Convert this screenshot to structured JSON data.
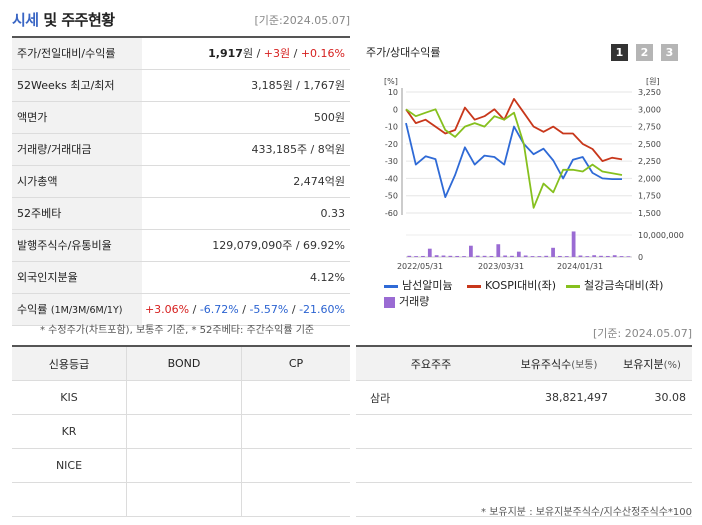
{
  "header": {
    "title_main": "시세",
    "title_rest": " 및 주주현황",
    "date": "[기준:2024.05.07]"
  },
  "info": {
    "rows": [
      {
        "label": "주가/전일대비/수익률"
      },
      {
        "label": "52Weeks 최고/최저",
        "value": "3,185원 / 1,767원"
      },
      {
        "label": "액면가",
        "value": "500원"
      },
      {
        "label": "거래량/거래대금",
        "value": "433,185주 / 8억원"
      },
      {
        "label": "시가총액",
        "value": "2,474억원"
      },
      {
        "label": "52주베타",
        "value": "0.33"
      },
      {
        "label": "발행주식수/유통비율",
        "value": "129,079,090주 / 69.92%"
      },
      {
        "label": "외국인지분율",
        "value": "4.12%"
      },
      {
        "label": "수익률",
        "label_sub": "(1M/3M/6M/1Y)"
      }
    ],
    "price": "1,917",
    "price_unit": "원",
    "sep": " / ",
    "change": "+3원",
    "change_pct": "+0.16%",
    "returns": [
      "+3.06%",
      "-6.72%",
      "-5.57%",
      "-21.60%"
    ]
  },
  "note1": "* 수정주가(차트포함), 보통주 기준, * 52주베타: 주간수익률 기준",
  "chart": {
    "title": "주가/상대수익률",
    "pages": [
      "1",
      "2",
      "3"
    ],
    "legend": {
      "stock": "남선알미늄",
      "kospi": "KOSPI대비(좌)",
      "sector": "철강금속대비(좌)",
      "volume": "거래량"
    },
    "colors": {
      "stock": "#2f6ad6",
      "kospi": "#c8371b",
      "sector": "#86c01e",
      "volume": "#9a6bd3"
    }
  },
  "chart_data": {
    "type": "line",
    "x_ticks": [
      "2022/05/31",
      "2023/03/31",
      "2024/01/31"
    ],
    "left_axis": {
      "unit": "[%]",
      "ticks": [
        10,
        0,
        -10,
        -20,
        -30,
        -40,
        -50,
        -60
      ],
      "range": [
        -60,
        10
      ]
    },
    "right_axis": {
      "unit": "[원]",
      "ticks": [
        "3,250",
        "3,000",
        "2,750",
        "2,500",
        "2,250",
        "2,000",
        "1,750",
        "1,500"
      ],
      "range": [
        1500,
        3250
      ]
    },
    "volume_axis": {
      "ticks": [
        "10,000,000",
        "0"
      ],
      "range": [
        0,
        10000000
      ]
    },
    "series": [
      {
        "name": "남선알미늄",
        "axis": "right",
        "values": [
          2800,
          2200,
          2320,
          2280,
          1730,
          2050,
          2450,
          2200,
          2330,
          2310,
          2200,
          2750,
          2500,
          2350,
          2430,
          2260,
          2000,
          2270,
          2310,
          2080,
          2000,
          1990,
          1990
        ]
      },
      {
        "name": "KOSPI대비(좌)",
        "axis": "left",
        "values": [
          0,
          -8,
          -6,
          -10,
          -14,
          -12,
          1,
          -6,
          -4,
          0,
          -6,
          6,
          -2,
          -10,
          -13,
          -10,
          -14,
          -14,
          -20,
          -23,
          -30,
          -28,
          -29
        ]
      },
      {
        "name": "철강금속대비(좌)",
        "axis": "left",
        "values": [
          0,
          -4,
          -2,
          0,
          -12,
          -16,
          -10,
          -8,
          -10,
          -4,
          -6,
          -2,
          -20,
          -57,
          -43,
          -48,
          -35,
          -35,
          -36,
          -32,
          -36,
          -37,
          -38
        ]
      },
      {
        "name": "거래량",
        "axis": "volume",
        "values": [
          400000,
          300000,
          350000,
          2800000,
          600000,
          500000,
          400000,
          350000,
          300000,
          3800000,
          450000,
          400000,
          350000,
          4300000,
          500000,
          400000,
          1800000,
          500000,
          300000,
          300000,
          400000,
          3100000,
          350000,
          300000,
          8600000,
          500000,
          300000,
          600000,
          400000,
          350000,
          600000,
          300000,
          250000
        ]
      }
    ]
  },
  "date2": "[기준: 2024.05.07]",
  "credit": {
    "headers": [
      "신용등급",
      "BOND",
      "CP"
    ],
    "rows": [
      {
        "agency": "KIS",
        "bond": "",
        "cp": ""
      },
      {
        "agency": "KR",
        "bond": "",
        "cp": ""
      },
      {
        "agency": "NICE",
        "bond": "",
        "cp": ""
      },
      {
        "agency": "",
        "bond": "",
        "cp": ""
      }
    ]
  },
  "holders": {
    "headers": [
      "주요주주",
      "보유주식수",
      "(보통)",
      "보유지분",
      "(%)"
    ],
    "rows": [
      {
        "name": "삼라",
        "shares": "38,821,497",
        "pct": "30.08"
      },
      {
        "name": "",
        "shares": "",
        "pct": ""
      },
      {
        "name": "",
        "shares": "",
        "pct": ""
      },
      {
        "name": "",
        "shares": "",
        "pct": ""
      }
    ]
  },
  "note2": "* 보유지분 : 보유지분주식수/지수산정주식수*100"
}
